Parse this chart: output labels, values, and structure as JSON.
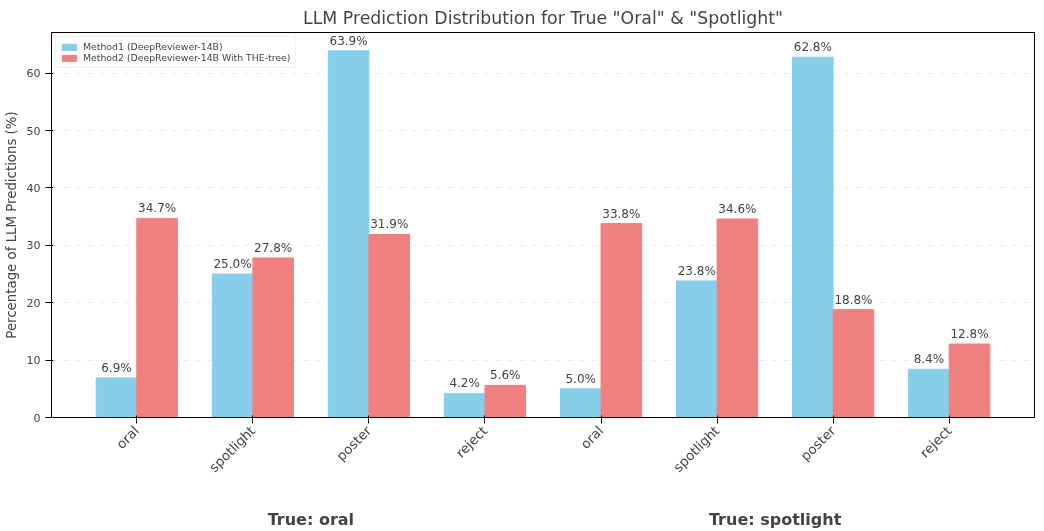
{
  "chart_data": {
    "type": "bar",
    "title": "LLM Prediction Distribution for True \"Oral\" & \"Spotlight\"",
    "ylabel": "Percentage of LLM Predictions (%)",
    "categories": [
      "oral",
      "spotlight",
      "poster",
      "reject",
      "oral",
      "spotlight",
      "poster",
      "reject"
    ],
    "series": [
      {
        "name": "Method1 (DeepReviewer-14B)",
        "color": "#87ceeb",
        "values": [
          6.9,
          25.0,
          63.9,
          4.2,
          5.0,
          23.8,
          62.8,
          8.4
        ],
        "value_labels": [
          "6.9%",
          "25.0%",
          "63.9%",
          "4.2%",
          "5.0%",
          "23.8%",
          "62.8%",
          "8.4%"
        ]
      },
      {
        "name": "Method2 (DeepReviewer-14B With THE-tree)",
        "color": "#f08080",
        "values": [
          34.7,
          27.8,
          31.9,
          5.6,
          33.8,
          34.6,
          18.8,
          12.8
        ],
        "value_labels": [
          "34.7%",
          "27.8%",
          "31.9%",
          "5.6%",
          "33.8%",
          "34.6%",
          "18.8%",
          "12.8%"
        ]
      }
    ],
    "annotations": [
      {
        "text": "True: oral"
      },
      {
        "text": "True: spotlight"
      }
    ],
    "ylim": [
      0,
      67.1
    ],
    "yticks": [
      0,
      10,
      20,
      30,
      40,
      50,
      60
    ],
    "grid": "y",
    "legend": "top left"
  }
}
